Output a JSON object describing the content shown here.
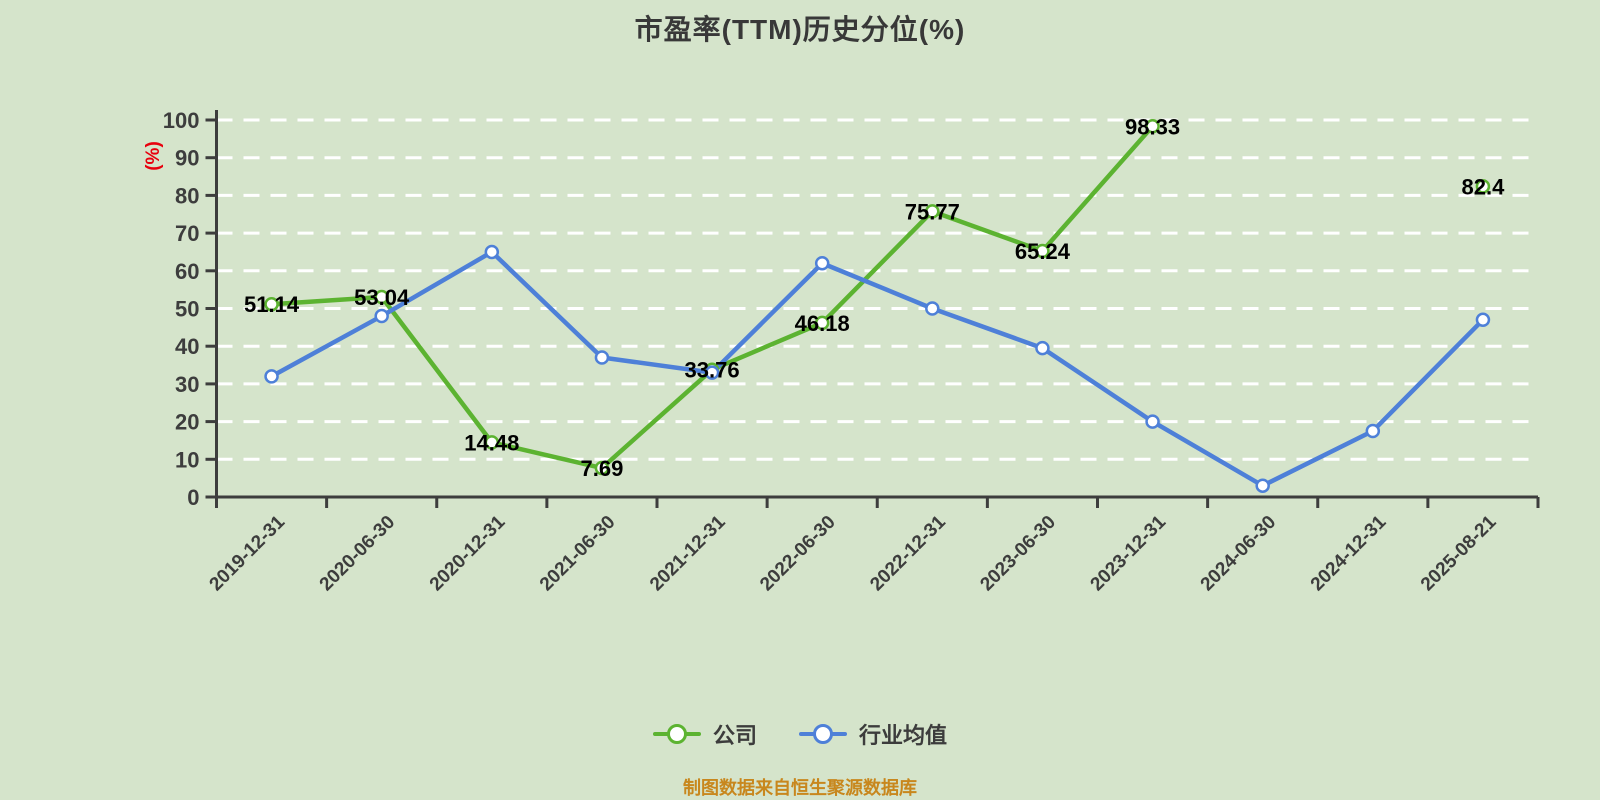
{
  "title": "市盈率(TTM)历史分位(%)",
  "y_axis_unit": "(%)",
  "footer": "制图数据来自恒生聚源数据库",
  "legend": [
    {
      "label": "公司",
      "color": "#5cb331"
    },
    {
      "label": "行业均值",
      "color": "#4e80d8"
    }
  ],
  "colors": {
    "background": "#d5e4cb",
    "axis": "#3d3d3d",
    "axis_text": "#3d3d3d",
    "grid": "#ffffff",
    "company_green": "#5cb331",
    "industry_blue": "#4e80d8",
    "marker_fill": "#ffffff",
    "value_label": "#000000",
    "unit_label_red": "#e8000d",
    "footer_orange": "#c8871d"
  },
  "chart_data": {
    "type": "line",
    "title": "市盈率(TTM)历史分位(%)",
    "ylabel": "(%)",
    "ylim": [
      0,
      100
    ],
    "y_ticks": [
      0,
      10,
      20,
      30,
      40,
      50,
      60,
      70,
      80,
      90,
      100
    ],
    "grid": "dashed-white-horizontal",
    "legend_position": "bottom",
    "categories": [
      "2019-12-31",
      "2020-06-30",
      "2020-12-31",
      "2021-06-30",
      "2021-12-31",
      "2022-06-30",
      "2022-12-31",
      "2023-06-30",
      "2023-12-31",
      "2024-06-30",
      "2024-12-31",
      "2025-08-21"
    ],
    "series": [
      {
        "name": "公司",
        "color": "#5cb331",
        "show_point_labels": true,
        "values": [
          51.14,
          53.04,
          14.48,
          7.69,
          33.76,
          46.18,
          75.77,
          65.24,
          98.33,
          null,
          null,
          82.4
        ]
      },
      {
        "name": "行业均值",
        "color": "#4e80d8",
        "show_point_labels": false,
        "values": [
          32,
          48,
          65,
          37,
          33,
          62,
          50,
          39.5,
          20,
          3,
          17.5,
          47
        ]
      }
    ]
  }
}
